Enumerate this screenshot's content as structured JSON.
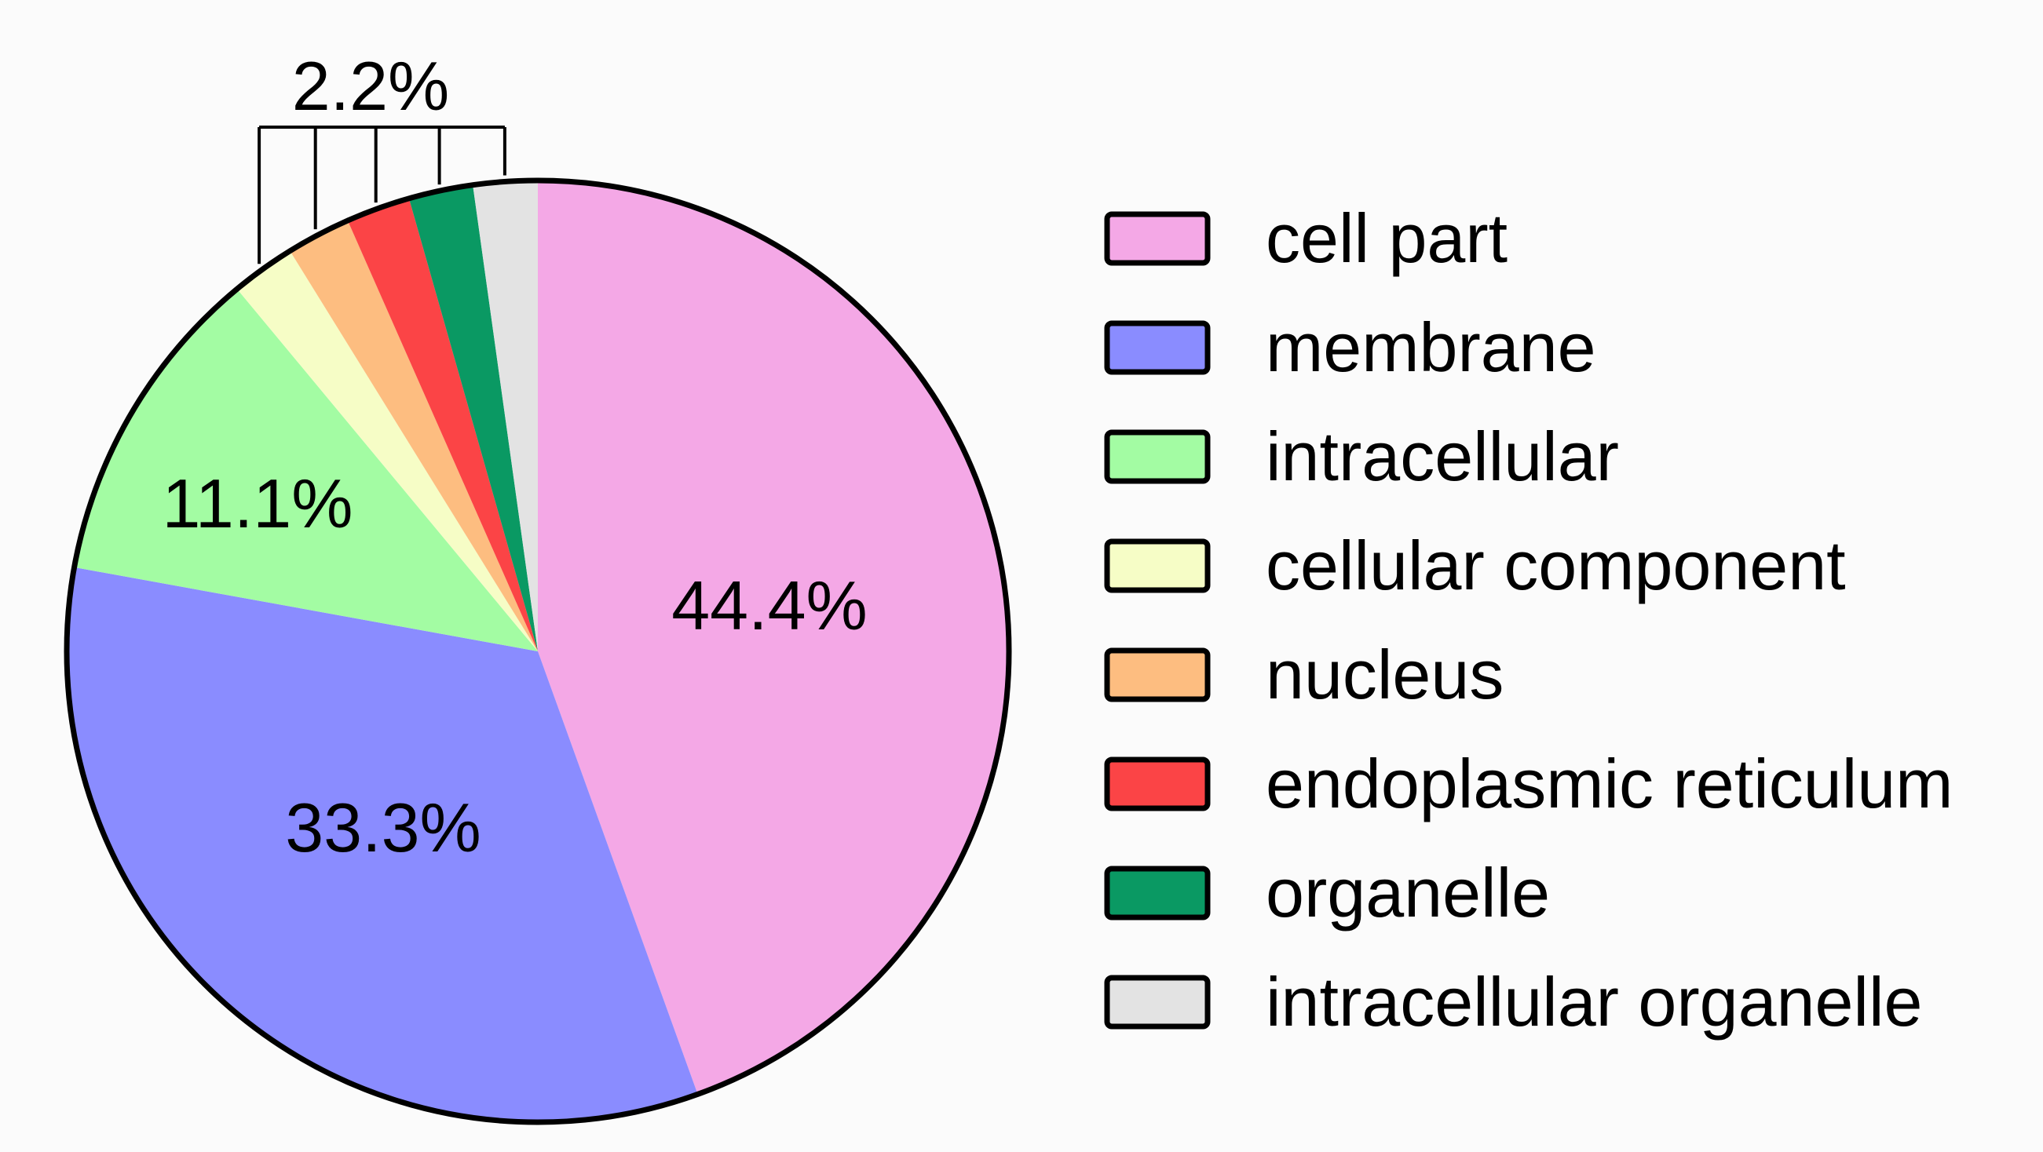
{
  "chart_data": {
    "type": "pie",
    "slices": [
      {
        "label": "cell part",
        "value": 44.4,
        "color": "#f4a8e6"
      },
      {
        "label": "membrane",
        "value": 33.3,
        "color": "#8a8cff"
      },
      {
        "label": "intracellular",
        "value": 11.1,
        "color": "#a3fca3"
      },
      {
        "label": "cellular component",
        "value": 2.2,
        "color": "#f6fdc6"
      },
      {
        "label": "nucleus",
        "value": 2.2,
        "color": "#fdbd80"
      },
      {
        "label": "endoplasmic reticulum",
        "value": 2.2,
        "color": "#fb4446"
      },
      {
        "label": "organelle",
        "value": 2.2,
        "color": "#0a9963"
      },
      {
        "label": "intracellular organelle",
        "value": 2.2,
        "color": "#e3e3e3"
      }
    ],
    "data_labels": {
      "cell_part": "44.4%",
      "membrane": "33.3%",
      "intracellular": "11.1%",
      "small_slices_group": "2.2%"
    },
    "legend_placement": "right",
    "start_angle": "12 o'clock, clockwise"
  }
}
